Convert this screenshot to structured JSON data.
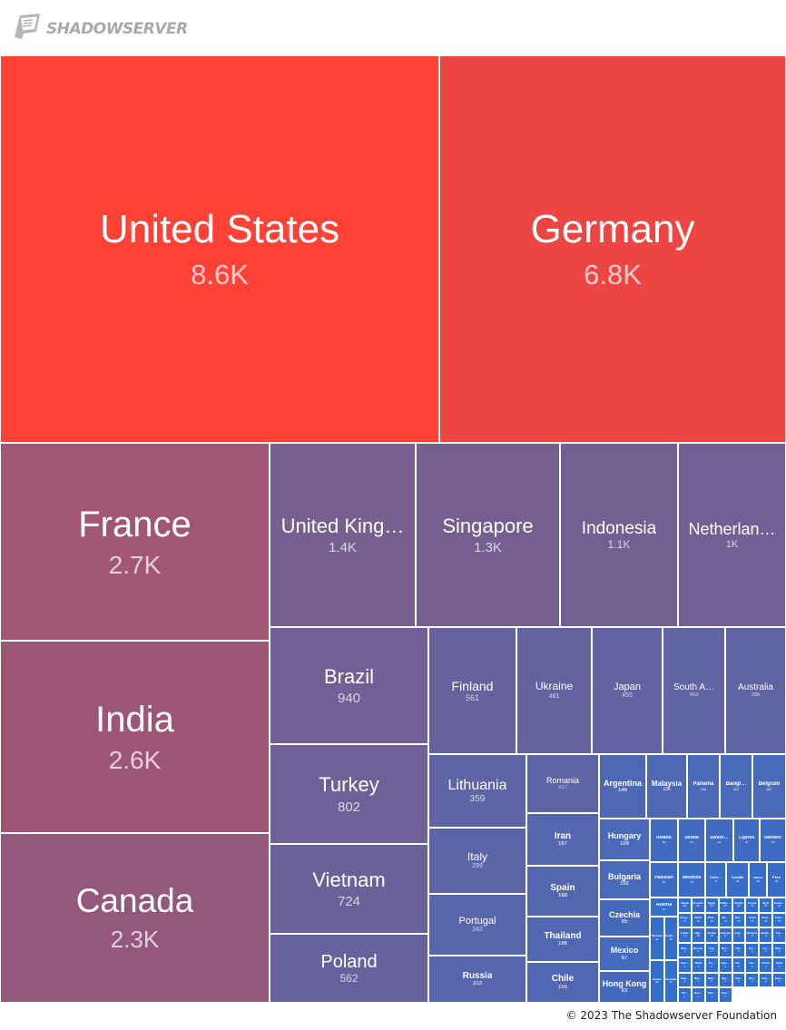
{
  "brand": {
    "name": "SHADOWSERVER",
    "logo_icon": "shadowserver-flag-icon",
    "text_color": "#a9a9a9"
  },
  "footer": {
    "copyright": "© 2023 The Shadowserver Foundation"
  },
  "chart_data": {
    "type": "treemap",
    "title": "",
    "color_scale": {
      "high": "#ff4136",
      "mid": "#7a5e8c",
      "low": "#2f6fd1"
    },
    "items": [
      {
        "name": "United States",
        "label": "United States",
        "value": 8600,
        "display": "8.6K"
      },
      {
        "name": "Germany",
        "label": "Germany",
        "value": 6800,
        "display": "6.8K"
      },
      {
        "name": "France",
        "label": "France",
        "value": 2700,
        "display": "2.7K"
      },
      {
        "name": "India",
        "label": "India",
        "value": 2600,
        "display": "2.6K"
      },
      {
        "name": "Canada",
        "label": "Canada",
        "value": 2300,
        "display": "2.3K"
      },
      {
        "name": "United Kingdom",
        "label": "United King…",
        "value": 1400,
        "display": "1.4K"
      },
      {
        "name": "Singapore",
        "label": "Singapore",
        "value": 1300,
        "display": "1.3K"
      },
      {
        "name": "Indonesia",
        "label": "Indonesia",
        "value": 1100,
        "display": "1.1K"
      },
      {
        "name": "Netherlands",
        "label": "Netherlan…",
        "value": 1000,
        "display": "1K"
      },
      {
        "name": "Brazil",
        "label": "Brazil",
        "value": 940,
        "display": "940"
      },
      {
        "name": "Turkey",
        "label": "Turkey",
        "value": 802,
        "display": "802"
      },
      {
        "name": "Vietnam",
        "label": "Vietnam",
        "value": 724,
        "display": "724"
      },
      {
        "name": "Poland",
        "label": "Poland",
        "value": 562,
        "display": "562"
      },
      {
        "name": "Finland",
        "label": "Finland",
        "value": 561,
        "display": "561"
      },
      {
        "name": "Ukraine",
        "label": "Ukraine",
        "value": 481,
        "display": "481"
      },
      {
        "name": "Japan",
        "label": "Japan",
        "value": 455,
        "display": "455"
      },
      {
        "name": "South Africa",
        "label": "South A…",
        "value": 403,
        "display": "403"
      },
      {
        "name": "Australia",
        "label": "Australia",
        "value": 395,
        "display": "395"
      },
      {
        "name": "Lithuania",
        "label": "Lithuania",
        "value": 359,
        "display": "359"
      },
      {
        "name": "Romania",
        "label": "Romania",
        "value": 327,
        "display": "327"
      },
      {
        "name": "Italy",
        "label": "Italy",
        "value": 299,
        "display": "299"
      },
      {
        "name": "Portugal",
        "label": "Portugal",
        "value": 242,
        "display": "242"
      },
      {
        "name": "Russia",
        "label": "Russia",
        "value": 213,
        "display": "213"
      },
      {
        "name": "Iran",
        "label": "Iran",
        "value": 197,
        "display": "197"
      },
      {
        "name": "Spain",
        "label": "Spain",
        "value": 188,
        "display": "188"
      },
      {
        "name": "Thailand",
        "label": "Thailand",
        "value": 166,
        "display": "166"
      },
      {
        "name": "Chile",
        "label": "Chile",
        "value": 155,
        "display": "155"
      },
      {
        "name": "Argentina",
        "label": "Argentina",
        "value": 146,
        "display": "146"
      },
      {
        "name": "Malaysia",
        "label": "Malaysia",
        "value": 136,
        "display": "136"
      },
      {
        "name": "Panama",
        "label": "Panama",
        "value": 108,
        "display": "108"
      },
      {
        "name": "Bangladesh",
        "label": "Bangl…",
        "value": 107,
        "display": "107"
      },
      {
        "name": "Belgium",
        "label": "Belgium",
        "value": 107,
        "display": "107"
      },
      {
        "name": "Hungary",
        "label": "Hungary",
        "value": 108,
        "display": "108"
      },
      {
        "name": "Bulgaria",
        "label": "Bulgaria",
        "value": 102,
        "display": "102"
      },
      {
        "name": "Czechia",
        "label": "Czechia",
        "value": 95,
        "display": "95"
      },
      {
        "name": "Mexico",
        "label": "Mexico",
        "value": 87,
        "display": "87"
      },
      {
        "name": "Hong Kong",
        "label": "Hong Kong",
        "value": 83,
        "display": "83"
      },
      {
        "name": "Ireland",
        "label": "Ireland",
        "value": 65,
        "display": "65"
      },
      {
        "name": "Serbia",
        "label": "Serbia",
        "value": 64,
        "display": "64"
      },
      {
        "name": "Switzerland",
        "label": "Switze…",
        "value": 63,
        "display": "63"
      },
      {
        "name": "Cyprus",
        "label": "Cyprus",
        "value": 62,
        "display": "62"
      },
      {
        "name": "Sweden",
        "label": "Sweden",
        "value": 61,
        "display": "61"
      },
      {
        "name": "Pakistan",
        "label": "Pakistan",
        "value": 50,
        "display": "50"
      },
      {
        "name": "Moldova",
        "label": "Moldova",
        "value": 48,
        "display": "48"
      },
      {
        "name": "Colombia",
        "label": "Colo…",
        "value": 41,
        "display": "41"
      },
      {
        "name": "Croatia",
        "label": "Croatia",
        "value": 40,
        "display": "40"
      },
      {
        "name": "Albania",
        "label": "Albania",
        "value": 38,
        "display": "38"
      },
      {
        "name": "Peru",
        "label": "Peru",
        "value": 38,
        "display": "38"
      },
      {
        "name": "Austria",
        "label": "Austria",
        "value": 34,
        "display": "34"
      },
      {
        "name": "Slovenia",
        "label": "Slovenia",
        "value": 32,
        "display": "32"
      },
      {
        "name": "South Korea",
        "label": "South Kor…",
        "value": 30,
        "display": "30"
      },
      {
        "name": "Greece",
        "label": "Greece",
        "value": 28,
        "display": "28"
      },
      {
        "name": "Slovakia",
        "label": "Slovakia",
        "value": 26,
        "display": "26"
      },
      {
        "name": "Nepal",
        "label": "Nepal",
        "value": 26,
        "display": "26"
      },
      {
        "name": "Ecuador",
        "label": "Ecuador",
        "value": 25,
        "display": "25"
      },
      {
        "name": "Egypt",
        "label": "Egypt",
        "value": 24,
        "display": "24"
      },
      {
        "name": "Philippines",
        "label": "Philippines",
        "value": 23,
        "display": "23"
      },
      {
        "name": "Taiwan",
        "label": "Taiwan",
        "value": 22,
        "display": "22"
      },
      {
        "name": "Kenya",
        "label": "Kenya",
        "value": 21,
        "display": "21"
      },
      {
        "name": "Syria",
        "label": "Syria",
        "value": 20,
        "display": "20"
      },
      {
        "name": "Costa Rica",
        "label": "Costa…",
        "value": 18,
        "display": "18"
      },
      {
        "name": "Hong Kong SAR",
        "label": "Hong…",
        "value": 17,
        "display": "17"
      },
      {
        "name": "China",
        "label": "China",
        "value": 16,
        "display": "16"
      },
      {
        "name": "Philippines 2",
        "label": "Phil…",
        "value": 15,
        "display": "15"
      },
      {
        "name": "Morocco",
        "label": "Mo…",
        "value": 14,
        "display": "14"
      },
      {
        "name": "Bolivia",
        "label": "Bol…",
        "value": 13,
        "display": "13"
      },
      {
        "name": "Israel",
        "label": "Israel",
        "value": 12,
        "display": "12"
      },
      {
        "name": "Uruguay",
        "label": "Urug…",
        "value": 12,
        "display": "12"
      },
      {
        "name": "Estonia",
        "label": "Esto…",
        "value": 11,
        "display": "11"
      },
      {
        "name": "Latvia",
        "label": "Latvia",
        "value": 11,
        "display": "11"
      },
      {
        "name": "Algeria",
        "label": "Alge…",
        "value": 10,
        "display": "10"
      },
      {
        "name": "Jordan",
        "label": "Jordan",
        "value": 10,
        "display": "10"
      },
      {
        "name": "Georgia",
        "label": "Georgia",
        "value": 9,
        "display": "9"
      },
      {
        "name": "Armenia",
        "label": "Arm…",
        "value": 9,
        "display": "9"
      },
      {
        "name": "Belarus",
        "label": "Belarus",
        "value": 8,
        "display": "8"
      },
      {
        "name": "Kazakhstan",
        "label": "Kazakhstan",
        "value": 8,
        "display": "8"
      },
      {
        "name": "Tunisia",
        "label": "Tun…",
        "value": 7,
        "display": "7"
      },
      {
        "name": "Denmark",
        "label": "Den…",
        "value": 7,
        "display": "7"
      },
      {
        "name": "Bosnia",
        "label": "Bosnia",
        "value": 6,
        "display": "6"
      },
      {
        "name": "Iraq",
        "label": "Iraq",
        "value": 6,
        "display": "6"
      },
      {
        "name": "Norway",
        "label": "Nor…",
        "value": 6,
        "display": "6"
      },
      {
        "name": "Lebanon",
        "label": "Leb…",
        "value": 5,
        "display": "5"
      },
      {
        "name": "Kyrgyzstan",
        "label": "Kyr…",
        "value": 5,
        "display": "5"
      },
      {
        "name": "Luxembourg",
        "label": "Lux…",
        "value": 5,
        "display": "5"
      },
      {
        "name": "Mongolia",
        "label": "Mon…",
        "value": 4,
        "display": "4"
      },
      {
        "name": "Azerbaijan",
        "label": "Azer…",
        "value": 4,
        "display": "4"
      },
      {
        "name": "Malta",
        "label": "Malta",
        "value": 4,
        "display": "4"
      },
      {
        "name": "Iceland",
        "label": "Ice…",
        "value": 3,
        "display": "3"
      },
      {
        "name": "Cambodia",
        "label": "Cam…",
        "value": 3,
        "display": "3"
      },
      {
        "name": "Sri Lanka",
        "label": "Sri…",
        "value": 3,
        "display": "3"
      },
      {
        "name": "Uzbekistan",
        "label": "Uzb…",
        "value": 3,
        "display": "3"
      },
      {
        "name": "Oman",
        "label": "Oman",
        "value": 3,
        "display": "3"
      },
      {
        "name": "Qatar",
        "label": "Qatar",
        "value": 2,
        "display": "2"
      },
      {
        "name": "Kuwait",
        "label": "Kuw…",
        "value": 2,
        "display": "2"
      },
      {
        "name": "Macao",
        "label": "Mac…",
        "value": 2,
        "display": "2"
      },
      {
        "name": "Bahrain",
        "label": "Bah…",
        "value": 2,
        "display": "2"
      },
      {
        "name": "Nigeria",
        "label": "Nig…",
        "value": 2,
        "display": "2"
      },
      {
        "name": "Ghana",
        "label": "Gha…",
        "value": 1,
        "display": "1"
      },
      {
        "name": "Venezuela",
        "label": "Ven…",
        "value": 1,
        "display": "1"
      },
      {
        "name": "Guatemala",
        "label": "Gua…",
        "value": 1,
        "display": "1"
      },
      {
        "name": "Dominican Republic",
        "label": "Dom…",
        "value": 1,
        "display": "1"
      },
      {
        "name": "Paraguay",
        "label": "Par…",
        "value": 1,
        "display": "1"
      },
      {
        "name": "Honduras",
        "label": "Hon…",
        "value": 1,
        "display": "1"
      },
      {
        "name": "El Salvador",
        "label": "Salv…",
        "value": 1,
        "display": "1"
      },
      {
        "name": "Jamaica",
        "label": "Jam…",
        "value": 1,
        "display": "1"
      }
    ]
  }
}
